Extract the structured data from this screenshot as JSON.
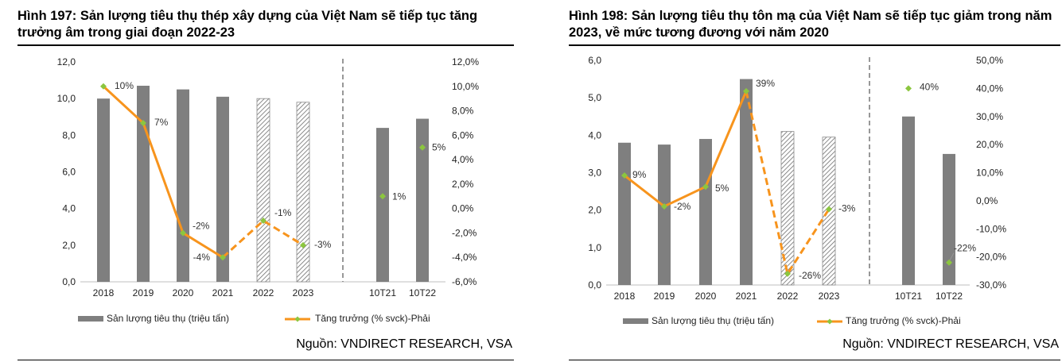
{
  "source_label": "Nguồn: VNDIRECT RESEARCH, VSA",
  "colors": {
    "bar": "#7f7f7f",
    "line": "#f7941d",
    "marker": "#8cc63f",
    "dash_divider": "#777777"
  },
  "chart_data": [
    {
      "type": "bar",
      "title": "Hình 197: Sản lượng tiêu thụ thép xây dựng của Việt Nam sẽ tiếp tục tăng trưởng âm trong giai đoạn 2022-23",
      "categories": [
        "2018",
        "2019",
        "2020",
        "2021",
        "2022",
        "2023",
        "10T21",
        "10T22"
      ],
      "series": [
        {
          "name": "Sản lượng tiêu thụ (triệu tấn)",
          "axis": "left",
          "values": [
            10.0,
            10.7,
            10.5,
            10.1,
            10.0,
            9.8,
            8.4,
            8.9
          ],
          "forecast": [
            false,
            false,
            false,
            false,
            true,
            true,
            false,
            false
          ]
        },
        {
          "name": "Tăng trưởng (% svck)-Phải",
          "axis": "right",
          "values": [
            10,
            7,
            -2,
            -4,
            -1,
            -3,
            1,
            5
          ],
          "labels": [
            "10%",
            "7%",
            "-2%",
            "-4%",
            "-1%",
            "-3%",
            "1%",
            "5%"
          ]
        }
      ],
      "ylim": [
        0,
        12
      ],
      "yticks": [
        "0,0",
        "2,0",
        "4,0",
        "6,0",
        "8,0",
        "10,0",
        "12,0"
      ],
      "y2lim": [
        -6,
        12
      ],
      "y2ticks": [
        "-6,0%",
        "-4,0%",
        "-2,0%",
        "0,0%",
        "2,0%",
        "4,0%",
        "6,0%",
        "8,0%",
        "10,0%",
        "12,0%"
      ],
      "legend_position": "bottom"
    },
    {
      "type": "bar",
      "title": "Hình 198: Sản lượng tiêu thụ tôn mạ của Việt Nam sẽ tiếp tục giảm trong năm 2023, về mức tương đương với năm 2020",
      "categories": [
        "2018",
        "2019",
        "2020",
        "2021",
        "2022",
        "2023",
        "10T21",
        "10T22"
      ],
      "series": [
        {
          "name": "Sản lượng tiêu thụ (triệu tấn)",
          "axis": "left",
          "values": [
            3.8,
            3.75,
            3.9,
            5.5,
            4.1,
            3.95,
            4.5,
            3.5
          ],
          "forecast": [
            false,
            false,
            false,
            false,
            true,
            true,
            false,
            false
          ]
        },
        {
          "name": "Tăng trưởng (% svck)-Phải",
          "axis": "right",
          "values": [
            9,
            -2,
            5,
            39,
            -26,
            -3,
            40,
            -22
          ],
          "labels": [
            "9%",
            "-2%",
            "5%",
            "39%",
            "-26%",
            "-3%",
            "40%",
            "-22%"
          ]
        }
      ],
      "ylim": [
        0,
        6
      ],
      "yticks": [
        "0,0",
        "1,0",
        "2,0",
        "3,0",
        "4,0",
        "5,0",
        "6,0"
      ],
      "y2lim": [
        -30,
        50
      ],
      "y2ticks": [
        "-30,0%",
        "-20,0%",
        "-10,0%",
        "0,0%",
        "10,0%",
        "20,0%",
        "30,0%",
        "40,0%",
        "50,0%"
      ],
      "legend_position": "bottom"
    }
  ]
}
